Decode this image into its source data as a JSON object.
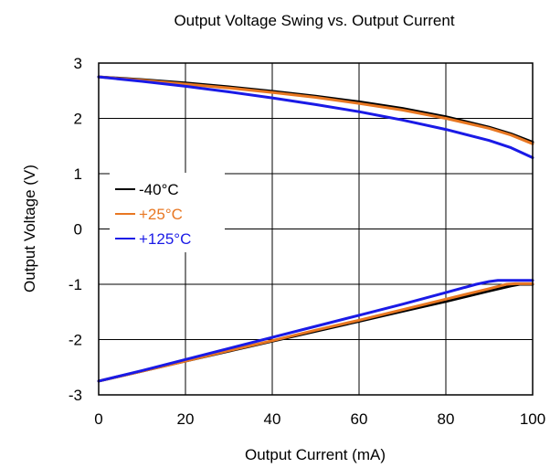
{
  "chart_data": {
    "type": "line",
    "title": "Output Voltage Swing vs. Output Current",
    "xlabel": "Output Current (mA)",
    "ylabel": "Output Voltage (V)",
    "xlim": [
      0,
      100
    ],
    "ylim": [
      -3,
      3
    ],
    "xticks": [
      0,
      20,
      40,
      60,
      80,
      100
    ],
    "yticks": [
      -3,
      -2,
      -1,
      0,
      1,
      2,
      3
    ],
    "grid": true,
    "legend_position": "left",
    "series": [
      {
        "name": "-40°C",
        "color": "#000000",
        "high": {
          "x": [
            0,
            10,
            20,
            30,
            40,
            50,
            60,
            70,
            80,
            90,
            95,
            100
          ],
          "y": [
            2.75,
            2.7,
            2.64,
            2.57,
            2.49,
            2.4,
            2.3,
            2.18,
            2.03,
            1.84,
            1.72,
            1.57
          ]
        },
        "low": {
          "x": [
            0,
            10,
            20,
            30,
            40,
            50,
            60,
            70,
            80,
            90,
            95,
            97,
            100
          ],
          "y": [
            -2.75,
            -2.57,
            -2.39,
            -2.21,
            -2.03,
            -1.85,
            -1.67,
            -1.49,
            -1.31,
            -1.12,
            -1.03,
            -1.0,
            -1.0
          ]
        }
      },
      {
        "name": "+25°C",
        "color": "#E87722",
        "high": {
          "x": [
            0,
            10,
            20,
            30,
            40,
            50,
            60,
            70,
            80,
            90,
            95,
            100
          ],
          "y": [
            2.75,
            2.69,
            2.62,
            2.55,
            2.47,
            2.38,
            2.27,
            2.15,
            2.0,
            1.82,
            1.7,
            1.54
          ]
        },
        "low": {
          "x": [
            0,
            10,
            20,
            30,
            40,
            50,
            60,
            70,
            80,
            90,
            94,
            96,
            100
          ],
          "y": [
            -2.75,
            -2.57,
            -2.39,
            -2.2,
            -2.02,
            -1.83,
            -1.65,
            -1.46,
            -1.27,
            -1.08,
            -1.0,
            -0.99,
            -0.99
          ]
        }
      },
      {
        "name": "+125°C",
        "color": "#1A1AE6",
        "high": {
          "x": [
            0,
            10,
            20,
            30,
            40,
            50,
            60,
            70,
            80,
            90,
            95,
            100
          ],
          "y": [
            2.75,
            2.67,
            2.58,
            2.48,
            2.37,
            2.25,
            2.12,
            1.97,
            1.8,
            1.6,
            1.47,
            1.29
          ]
        },
        "low": {
          "x": [
            0,
            10,
            20,
            30,
            40,
            50,
            60,
            70,
            80,
            87,
            90,
            92,
            100
          ],
          "y": [
            -2.75,
            -2.56,
            -2.36,
            -2.16,
            -1.96,
            -1.76,
            -1.56,
            -1.36,
            -1.15,
            -1.0,
            -0.95,
            -0.93,
            -0.93
          ]
        }
      }
    ]
  }
}
